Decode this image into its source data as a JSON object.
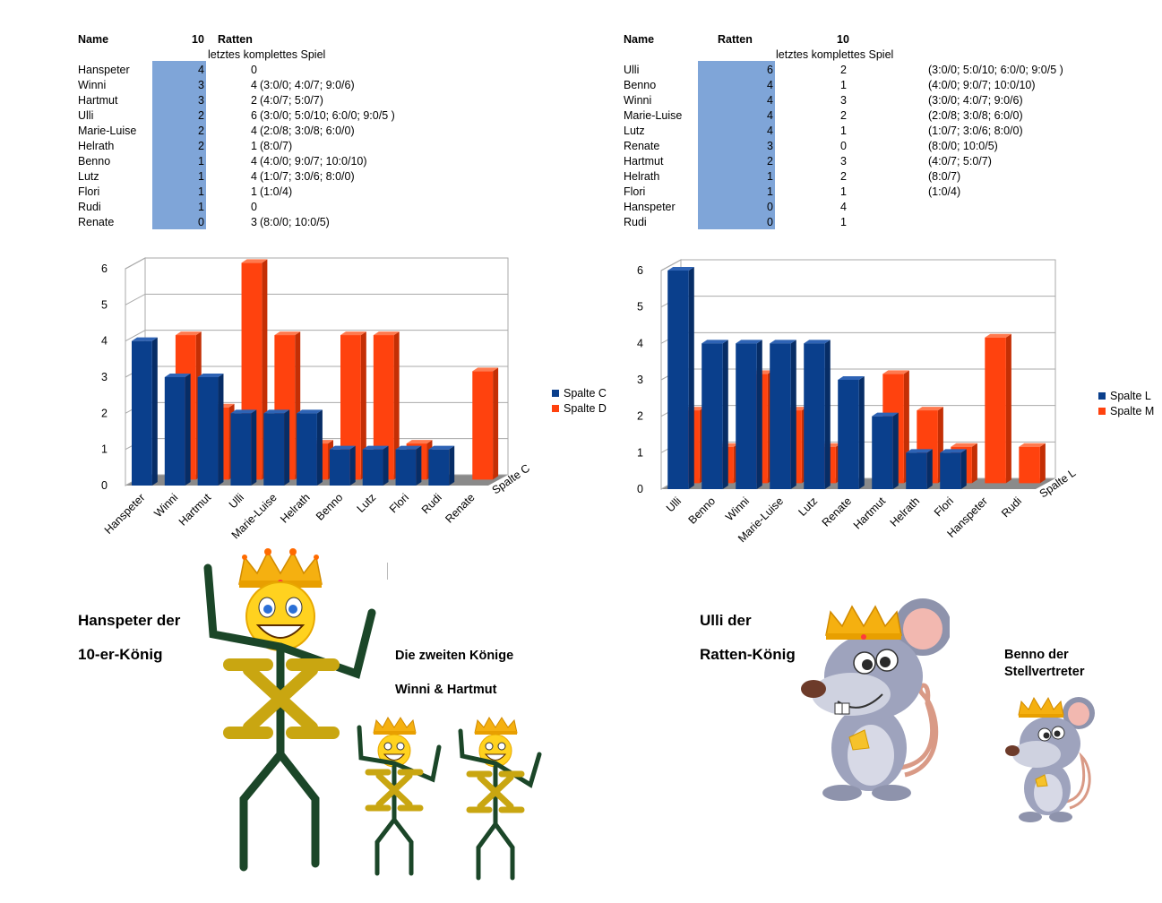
{
  "left_table": {
    "header": {
      "name": "Name",
      "tens": "10",
      "rats": "Ratten"
    },
    "subheader": "letztes komplettes Spiel",
    "rows": [
      {
        "name": "Hanspeter",
        "tens": "4",
        "rats": "0",
        "detail": ""
      },
      {
        "name": "Winni",
        "tens": "3",
        "rats": "4",
        "detail": "(3:0/0; 4:0/7; 9:0/6)"
      },
      {
        "name": "Hartmut",
        "tens": "3",
        "rats": "2",
        "detail": "(4:0/7; 5:0/7)"
      },
      {
        "name": "Ulli",
        "tens": "2",
        "rats": "6",
        "detail": "(3:0/0; 5:0/10; 6:0/0; 9:0/5 )"
      },
      {
        "name": "Marie-Luise",
        "tens": "2",
        "rats": "4",
        "detail": "(2:0/8; 3:0/8; 6:0/0)"
      },
      {
        "name": "Helrath",
        "tens": "2",
        "rats": "1",
        "detail": "(8:0/7)"
      },
      {
        "name": "Benno",
        "tens": "1",
        "rats": "4",
        "detail": "(4:0/0; 9:0/7; 10:0/10)"
      },
      {
        "name": "Lutz",
        "tens": "1",
        "rats": "4",
        "detail": "(1:0/7; 3:0/6; 8:0/0)"
      },
      {
        "name": "Flori",
        "tens": "1",
        "rats": "1",
        "detail": "(1:0/4)"
      },
      {
        "name": "Rudi",
        "tens": "1",
        "rats": "0",
        "detail": ""
      },
      {
        "name": "Renate",
        "tens": "0",
        "rats": "3",
        "detail": "(8:0/0; 10:0/5)"
      }
    ]
  },
  "right_table": {
    "header": {
      "name": "Name",
      "rats": "Ratten",
      "tens": "10"
    },
    "subheader": "letztes komplettes Spiel",
    "rows": [
      {
        "name": "Ulli",
        "rats": "6",
        "tens": "2",
        "detail": "(3:0/0; 5:0/10; 6:0/0; 9:0/5 )"
      },
      {
        "name": "Benno",
        "rats": "4",
        "tens": "1",
        "detail": "(4:0/0; 9:0/7; 10:0/10)"
      },
      {
        "name": "Winni",
        "rats": "4",
        "tens": "3",
        "detail": "(3:0/0; 4:0/7; 9:0/6)"
      },
      {
        "name": "Marie-Luise",
        "rats": "4",
        "tens": "2",
        "detail": "(2:0/8; 3:0/8; 6:0/0)"
      },
      {
        "name": "Lutz",
        "rats": "4",
        "tens": "1",
        "detail": "(1:0/7; 3:0/6; 8:0/0)"
      },
      {
        "name": "Renate",
        "rats": "3",
        "tens": "0",
        "detail": "(8:0/0; 10:0/5)"
      },
      {
        "name": "Hartmut",
        "rats": "2",
        "tens": "3",
        "detail": "(4:0/7; 5:0/7)"
      },
      {
        "name": "Helrath",
        "rats": "1",
        "tens": "2",
        "detail": "(8:0/7)"
      },
      {
        "name": "Flori",
        "rats": "1",
        "tens": "1",
        "detail": "(1:0/4)"
      },
      {
        "name": "Hanspeter",
        "rats": "0",
        "tens": "4",
        "detail": ""
      },
      {
        "name": "Rudi",
        "rats": "0",
        "tens": "1",
        "detail": ""
      }
    ]
  },
  "chart_data": [
    {
      "type": "bar",
      "categories": [
        "Hanspeter",
        "Winni",
        "Hartmut",
        "Ulli",
        "Marie-Luise",
        "Helrath",
        "Benno",
        "Lutz",
        "Flori",
        "Rudi",
        "Renate"
      ],
      "series": [
        {
          "name": "Spalte C",
          "color": "#0a3f8c",
          "values": [
            4,
            3,
            3,
            2,
            2,
            2,
            1,
            1,
            1,
            1,
            0
          ]
        },
        {
          "name": "Spalte D",
          "color": "#ff420e",
          "values": [
            0,
            4,
            2,
            6,
            4,
            1,
            4,
            4,
            1,
            0,
            3
          ]
        }
      ],
      "yticks": [
        "0",
        "1",
        "2",
        "3",
        "4",
        "5",
        "6"
      ],
      "ylim": [
        0,
        6
      ],
      "depth_axis_label": "Spalte C",
      "legend_position": "right"
    },
    {
      "type": "bar",
      "categories": [
        "Ulli",
        "Benno",
        "Winni",
        "Marie-Luise",
        "Lutz",
        "Renate",
        "Hartmut",
        "Helrath",
        "Flori",
        "Hanspeter",
        "Rudi"
      ],
      "series": [
        {
          "name": "Spalte L",
          "color": "#0a3f8c",
          "values": [
            6,
            4,
            4,
            4,
            4,
            3,
            2,
            1,
            1,
            0,
            0
          ]
        },
        {
          "name": "Spalte M",
          "color": "#ff420e",
          "values": [
            2,
            1,
            3,
            2,
            1,
            0,
            3,
            2,
            1,
            4,
            1
          ]
        }
      ],
      "yticks": [
        "0",
        "1",
        "2",
        "3",
        "4",
        "5",
        "6"
      ],
      "ylim": [
        0,
        6
      ],
      "depth_axis_label": "Spalte L",
      "legend_position": "right"
    }
  ],
  "captions": {
    "left_title_1": "Hanspeter der",
    "left_title_2": "10-er-König",
    "second_kings_1": "Die zweiten Könige",
    "second_kings_2": "Winni & Hartmut",
    "right_title_1": "Ulli der",
    "right_title_2": "Ratten-König",
    "deputy_1": "Benno der",
    "deputy_2": "Stellvertreter"
  }
}
